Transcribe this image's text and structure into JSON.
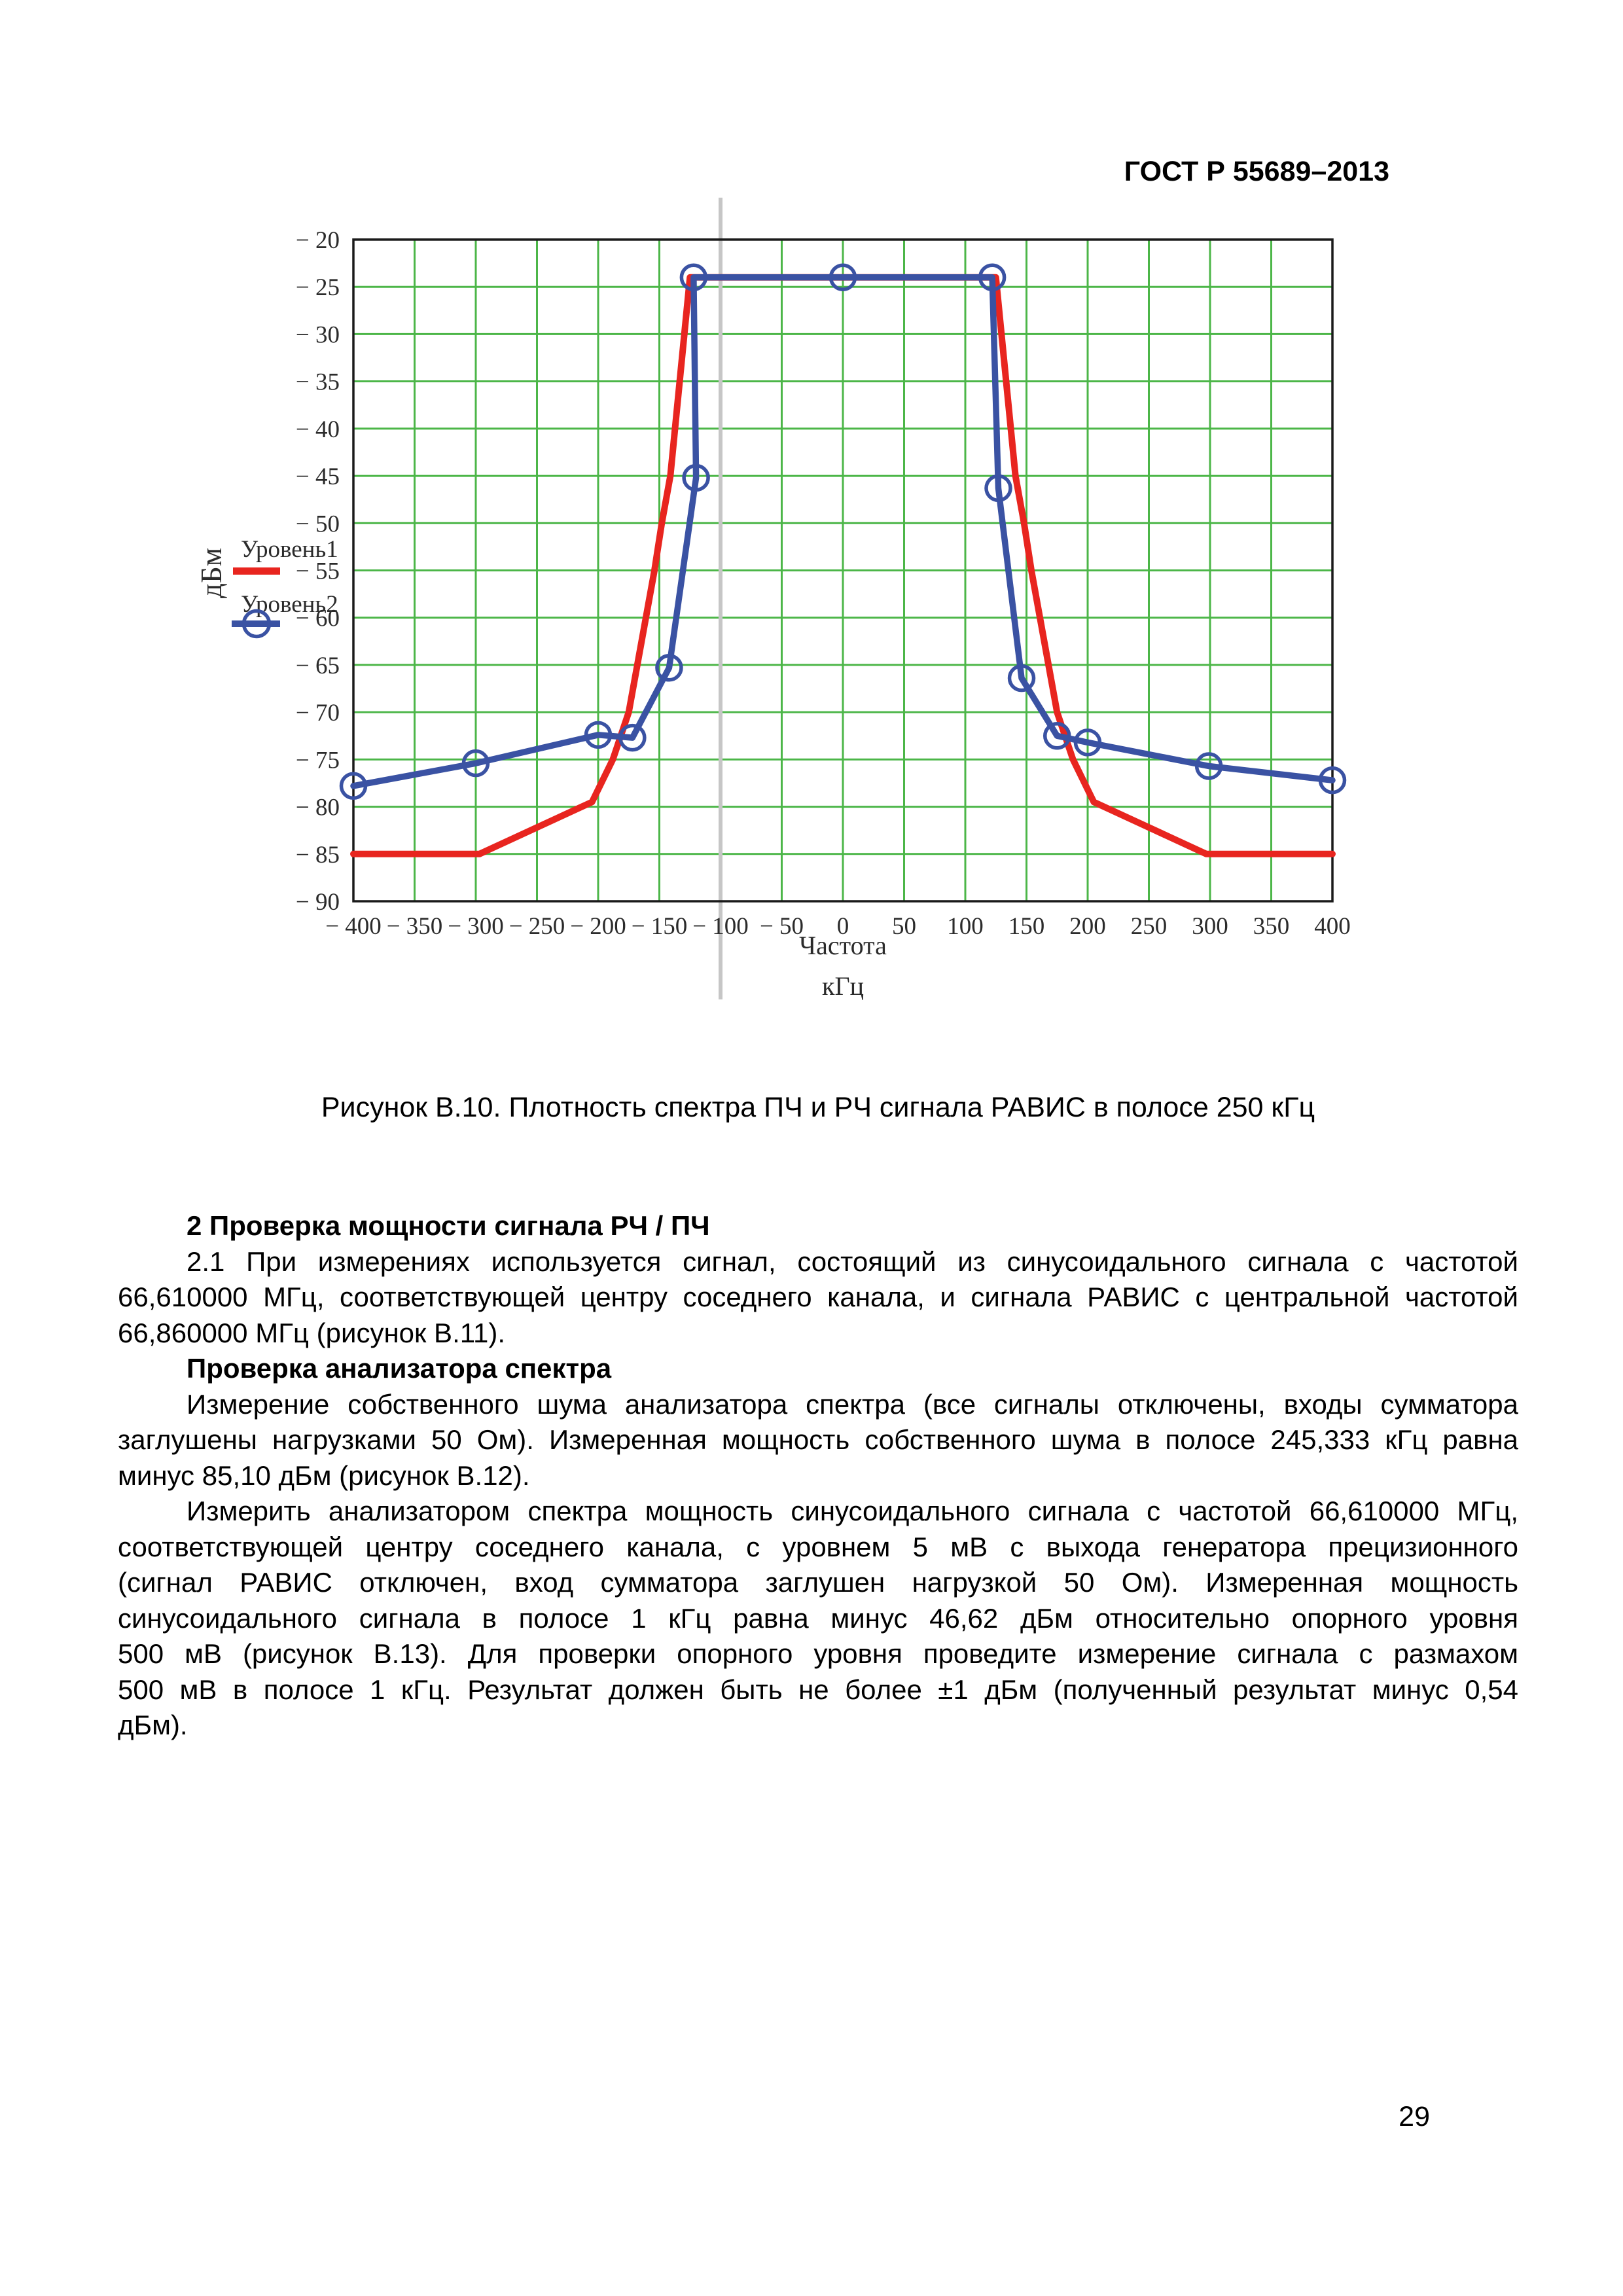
{
  "document": {
    "header": "ГОСТ Р 55689–2013",
    "caption": "Рисунок В.10. Плотность спектра ПЧ и РЧ сигнала РАВИС в полосе 250 кГц",
    "page_number": "29",
    "paragraphs": [
      {
        "bold": true,
        "indent": true,
        "lines": [
          "2 Проверка мощности сигнала РЧ / ПЧ"
        ]
      },
      {
        "bold": false,
        "indent": true,
        "lines": [
          "2.1 При измерениях используется сигнал, состоящий из синусоидального сигнала с частотой",
          "66,610000 МГц, соответствующей центру соседнего канала, и сигнала РАВИС с центральной частотой",
          "66,860000 МГц (рисунок В.11)."
        ]
      },
      {
        "bold": true,
        "indent": true,
        "lines": [
          "Проверка анализатора спектра"
        ]
      },
      {
        "bold": false,
        "indent": true,
        "lines": [
          "Измерение собственного шума анализатора спектра (все сигналы отключены, входы сумматора",
          "заглушены нагрузками 50 Ом). Измеренная мощность собственного шума в полосе 245,333 кГц равна",
          "минус 85,10 дБм (рисунок В.12)."
        ]
      },
      {
        "bold": false,
        "indent": true,
        "lines": [
          "Измерить анализатором спектра мощность синусоидального сигнала с частотой 66,610000 МГц,",
          "соответствующей центру соседнего канала, с уровнем 5 мВ с выхода генератора прецизионного",
          "(сигнал РАВИС отключен, вход сумматора заглушен нагрузкой 50 Ом). Измеренная мощность",
          "синусоидального сигнала в полосе 1 кГц равна минус 46,62 дБм относительно опорного уровня",
          "500 мВ (рисунок В.13). Для проверки опорного уровня проведите измерение сигнала с размахом",
          "500 мВ в полосе 1 кГц. Результат должен быть не более ±1 дБм (полученный результат минус 0,54",
          "дБм)."
        ]
      }
    ]
  },
  "chart_data": {
    "type": "line",
    "title": "",
    "xlabel": "Частота",
    "xunit": "кГц",
    "ylabel": "дБм",
    "xlim": [
      -400,
      400
    ],
    "ylim": [
      -90,
      -20
    ],
    "xticks": [
      -400,
      -350,
      -300,
      -250,
      -200,
      -150,
      -100,
      -50,
      0,
      50,
      100,
      150,
      200,
      250,
      300,
      350,
      400
    ],
    "yticks": [
      -20,
      -25,
      -30,
      -35,
      -40,
      -45,
      -50,
      -55,
      -60,
      -65,
      -70,
      -75,
      -80,
      -85,
      -90
    ],
    "grid": true,
    "grid_color": "#4cb648",
    "frame_color": "#1a1a1a",
    "text_color": "#2b2b2b",
    "marker_line": {
      "x": -100,
      "color": "#c6c6c6"
    },
    "legend": {
      "position": "left",
      "entries": [
        {
          "label": "Уровень1",
          "color": "#e8251f",
          "marker": "none"
        },
        {
          "label": "Уровень2",
          "color": "#3a52a3",
          "marker": "circle"
        }
      ]
    },
    "series": [
      {
        "name": "Уровень1",
        "color": "#e8251f",
        "marker": "none",
        "points": [
          [
            -400,
            -85
          ],
          [
            -297,
            -85
          ],
          [
            -205,
            -79.5
          ],
          [
            -188,
            -75
          ],
          [
            -175,
            -70
          ],
          [
            -168,
            -65
          ],
          [
            -161,
            -60
          ],
          [
            -154,
            -55
          ],
          [
            -148,
            -50
          ],
          [
            -141,
            -45
          ],
          [
            -125,
            -24
          ],
          [
            125,
            -24
          ],
          [
            141,
            -45
          ],
          [
            148,
            -50
          ],
          [
            154,
            -55
          ],
          [
            161,
            -60
          ],
          [
            168,
            -65
          ],
          [
            175,
            -70
          ],
          [
            188,
            -75
          ],
          [
            205,
            -79.5
          ],
          [
            297,
            -85
          ],
          [
            400,
            -85
          ]
        ]
      },
      {
        "name": "Уровень2",
        "color": "#3a52a3",
        "marker": "circle",
        "points": [
          [
            -400,
            -77.8
          ],
          [
            -300,
            -75.4
          ],
          [
            -200,
            -72.4
          ],
          [
            -172,
            -72.7
          ],
          [
            -142,
            -65.3
          ],
          [
            -120,
            -45.2
          ],
          [
            -122,
            -24
          ],
          [
            0,
            -24
          ],
          [
            122,
            -24
          ],
          [
            127,
            -46.3
          ],
          [
            146,
            -66.4
          ],
          [
            175,
            -72.5
          ],
          [
            200,
            -73.2
          ],
          [
            299,
            -75.7
          ],
          [
            400,
            -77.2
          ]
        ]
      }
    ]
  }
}
